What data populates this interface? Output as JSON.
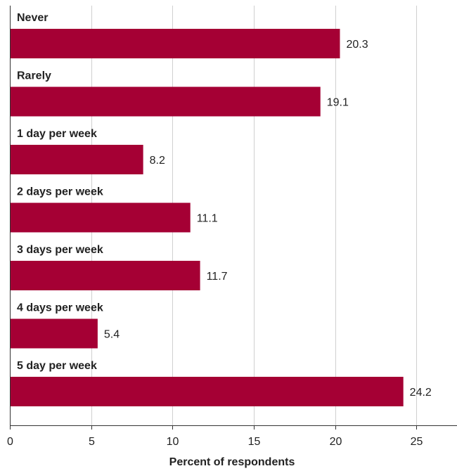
{
  "chart_data": {
    "type": "bar",
    "orientation": "horizontal",
    "categories": [
      "Never",
      "Rarely",
      "1 day per week",
      "2 days per week",
      "3 days per week",
      "4 days per week",
      "5 day per week"
    ],
    "values": [
      20.3,
      19.1,
      8.2,
      11.1,
      11.7,
      5.4,
      24.2
    ],
    "value_labels": [
      "20.3",
      "19.1",
      "8.2",
      "11.1",
      "11.7",
      "5.4",
      "24.2"
    ],
    "xlabel": "Percent of respondents",
    "ylabel": "",
    "xlim": [
      0,
      27.5
    ],
    "xticks": [
      0,
      5,
      10,
      15,
      20,
      25
    ],
    "grid": true,
    "bar_color": "#a50034"
  }
}
